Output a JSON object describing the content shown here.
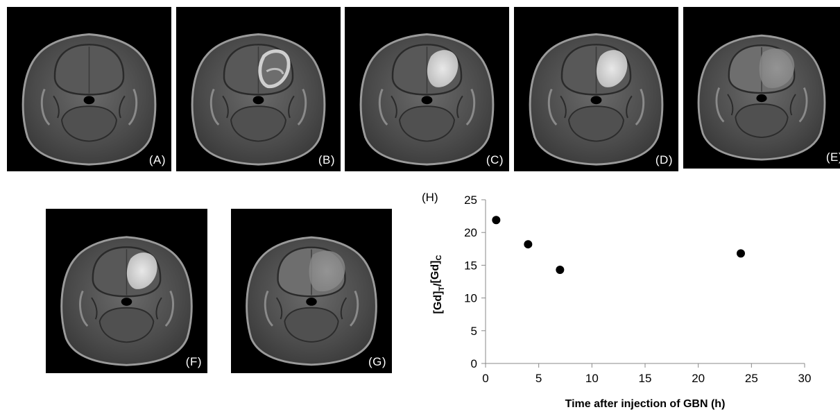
{
  "panels": [
    {
      "label": "(A)",
      "enhancement": "none"
    },
    {
      "label": "(B)",
      "enhancement": "ring"
    },
    {
      "label": "(C)",
      "enhancement": "bright"
    },
    {
      "label": "(D)",
      "enhancement": "bright"
    },
    {
      "label": "(E)",
      "enhancement": "diffuse"
    },
    {
      "label": "(F)",
      "enhancement": "bright"
    },
    {
      "label": "(G)",
      "enhancement": "diffuse"
    }
  ],
  "chart_panel_label": "(H)",
  "chart_data": {
    "type": "scatter",
    "title": "",
    "xlabel": "Time after injection of GBN (h)",
    "ylabel": "[Gd]T/[Gd]C",
    "xlim": [
      0,
      30
    ],
    "ylim": [
      0,
      25
    ],
    "xticks": [
      0,
      5,
      10,
      15,
      20,
      25,
      30
    ],
    "yticks": [
      0,
      5,
      10,
      15,
      20,
      25
    ],
    "grid": false,
    "points": [
      {
        "x": 1,
        "y": 21.9
      },
      {
        "x": 4,
        "y": 18.2
      },
      {
        "x": 7,
        "y": 14.3
      },
      {
        "x": 24,
        "y": 16.8
      }
    ],
    "marker_color": "#000000"
  }
}
